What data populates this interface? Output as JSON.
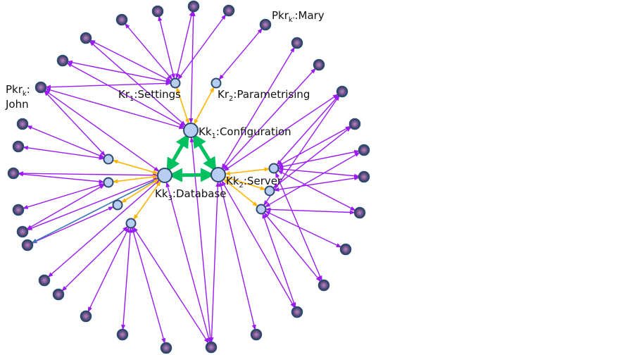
{
  "colors": {
    "hierarchy_edge": "#9b1bf5",
    "core_edge": "#00c060",
    "link_edge": "#ffb400",
    "special_edge": "#3a78b8",
    "hub_fill": "#b8cdef",
    "outer_fill": "#6a4a80",
    "node_stroke": "#2c4a6e"
  },
  "labels": {
    "kk1": {
      "main": "Kk",
      "sub": "1",
      "rest": ":Configuration"
    },
    "kk2": {
      "main": "Kk",
      "sub": "2",
      "rest": ":Server"
    },
    "kk3": {
      "main": "Kk",
      "sub": "3",
      "rest": ":Database"
    },
    "kr1": {
      "main": "Kr",
      "sub": "1",
      "rest": ":Settings"
    },
    "kr2": {
      "main": "Kr",
      "sub": "2",
      "rest": ":Parametrising"
    },
    "john": {
      "main": "Pkr",
      "sub": "k",
      "rest": ":",
      "line2": "John"
    },
    "mary": {
      "main": "Pkr",
      "sub": "k'",
      "rest": ":Mary"
    }
  },
  "core_edges": [
    [
      "kk1",
      "kk2"
    ],
    [
      "kk1",
      "kk3"
    ],
    [
      "kk2",
      "kk3"
    ]
  ],
  "link_edges": [
    [
      "kk1",
      "kr1"
    ],
    [
      "kk1",
      "kr2"
    ],
    [
      "kk3",
      "l1"
    ],
    [
      "kk3",
      "l2"
    ],
    [
      "kk3",
      "l3"
    ],
    [
      "kk3",
      "l4"
    ],
    [
      "kk2",
      "r1"
    ],
    [
      "kk2",
      "r2"
    ],
    [
      "kk2",
      "r3"
    ]
  ],
  "special_edges": [
    [
      "kk3",
      "o6"
    ]
  ],
  "hierarchy_edges": [
    [
      "kr1",
      "o22"
    ],
    [
      "kr1",
      "o23"
    ],
    [
      "kr1",
      "o24"
    ],
    [
      "kr1",
      "o25"
    ],
    [
      "kr1",
      "o21"
    ],
    [
      "kr1",
      "o20"
    ],
    [
      "kr1",
      "john"
    ],
    [
      "kr2",
      "mary"
    ],
    [
      "kk1",
      "o24"
    ],
    [
      "kk1",
      "o21"
    ],
    [
      "kk1",
      "o20"
    ],
    [
      "kk1",
      "john"
    ],
    [
      "kk1",
      "o13"
    ],
    [
      "john",
      "l1"
    ],
    [
      "john",
      "kk3"
    ],
    [
      "l1",
      "o1"
    ],
    [
      "l1",
      "o2"
    ],
    [
      "kk3",
      "o3"
    ],
    [
      "l2",
      "o3"
    ],
    [
      "l2",
      "o4"
    ],
    [
      "l2",
      "o5"
    ],
    [
      "l3",
      "o6"
    ],
    [
      "kk3",
      "o5"
    ],
    [
      "kk3",
      "o7"
    ],
    [
      "l4",
      "o8"
    ],
    [
      "l4",
      "o9"
    ],
    [
      "l4",
      "o10"
    ],
    [
      "l4",
      "o11"
    ],
    [
      "l4",
      "o13"
    ],
    [
      "kk3",
      "o13"
    ],
    [
      "kk2",
      "o27"
    ],
    [
      "kk2",
      "o28"
    ],
    [
      "kk2",
      "o29"
    ],
    [
      "kk2",
      "o13"
    ],
    [
      "kk2",
      "o14"
    ],
    [
      "kk2",
      "o15"
    ],
    [
      "r1",
      "o29"
    ],
    [
      "r1",
      "o30"
    ],
    [
      "r1",
      "o31"
    ],
    [
      "r1",
      "o32"
    ],
    [
      "r1",
      "o16"
    ],
    [
      "r1",
      "o18"
    ],
    [
      "r2",
      "o30"
    ],
    [
      "r2",
      "o32"
    ],
    [
      "r3",
      "o31"
    ],
    [
      "r3",
      "o33"
    ],
    [
      "r3",
      "o17"
    ],
    [
      "r3",
      "o16"
    ],
    [
      "r3",
      "o15"
    ],
    [
      "r3",
      "o29"
    ]
  ]
}
